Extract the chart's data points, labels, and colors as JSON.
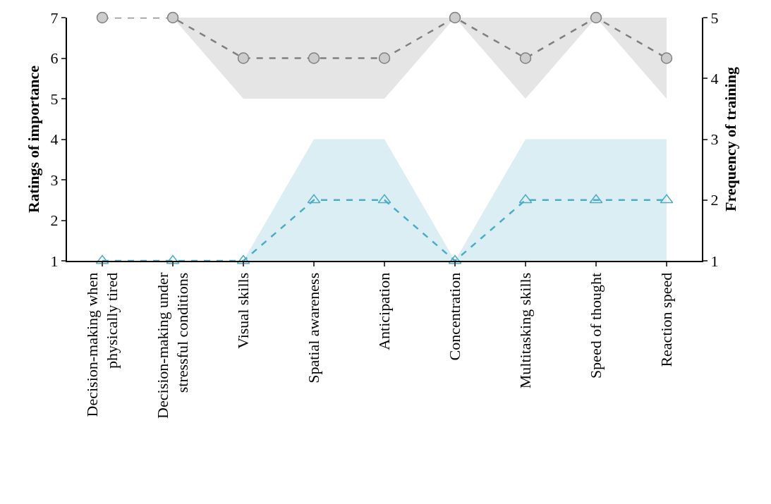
{
  "chart_data": {
    "type": "line",
    "categories": [
      "Decision-making when\nphysically tired",
      "Decision-making under\nstressful conditions",
      "Visual skills",
      "Spatial awareness",
      "Anticipation",
      "Concentration",
      "Multitasking skills",
      "Speed of thought",
      "Reaction speed"
    ],
    "series": [
      {
        "color": "#808080",
        "marker": "circle",
        "values": [
          7,
          7,
          6,
          6,
          6,
          7,
          6,
          7,
          6
        ],
        "lower": [
          7,
          7,
          5,
          5,
          5,
          7,
          5,
          7,
          5
        ],
        "upper": [
          7,
          7,
          7,
          7,
          7,
          7,
          7,
          7,
          7
        ]
      },
      {
        "color": "#4bacc6",
        "marker": "triangle",
        "axis": "y2",
        "values": [
          1,
          1,
          1,
          2,
          2,
          1,
          2,
          2,
          2
        ],
        "lower": [
          1,
          1,
          1,
          1,
          1,
          1,
          1,
          1,
          1
        ],
        "upper": [
          1,
          1,
          1,
          3,
          3,
          1,
          3,
          3,
          3
        ]
      }
    ],
    "ylabel": "Ratings of importance",
    "y2label": "Frequency of training",
    "ylim": [
      1,
      7
    ],
    "yticks": [
      1,
      2,
      3,
      4,
      5,
      6,
      7
    ],
    "y2lim": [
      1,
      5
    ],
    "y2ticks": [
      1,
      2,
      3,
      4,
      5
    ],
    "line_style": "dashed"
  }
}
